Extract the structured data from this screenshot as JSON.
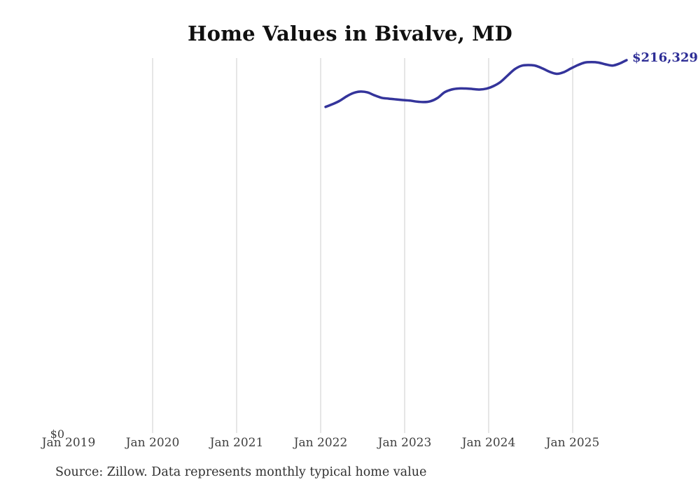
{
  "title": "Home Values in Bivalve, MD",
  "source_note": "Source: Zillow. Data represents monthly typical home value",
  "y_zero_label": "$0",
  "last_value_label": "$216,329",
  "colors": {
    "background": "#ffffff",
    "line": "#34349b",
    "last_value_label": "#2e2e96",
    "grid": "#cccccc",
    "axis_text": "#3f3f3f",
    "title_text": "#101010",
    "source_text": "#303030"
  },
  "chart_data": {
    "type": "line",
    "title": "Home Values in Bivalve, MD",
    "xlabel": "",
    "ylabel": "",
    "legend": "none",
    "grid": "vertical-only",
    "ylim": [
      0,
      216329
    ],
    "y_zero_label": "$0",
    "last_point_label": "$216,329",
    "x_ticks": [
      {
        "label": "Jan 2019",
        "year": 2019,
        "gridline": false
      },
      {
        "label": "Jan 2020",
        "year": 2020,
        "gridline": true
      },
      {
        "label": "Jan 2021",
        "year": 2021,
        "gridline": true
      },
      {
        "label": "Jan 2022",
        "year": 2022,
        "gridline": true
      },
      {
        "label": "Jan 2023",
        "year": 2023,
        "gridline": true
      },
      {
        "label": "Jan 2024",
        "year": 2024,
        "gridline": true
      },
      {
        "label": "Jan 2025",
        "year": 2025,
        "gridline": true
      }
    ],
    "series": [
      {
        "name": "Monthly typical home value",
        "frequency": "monthly",
        "start": "2022-01",
        "end": "2025-08",
        "months": [
          "2022-01",
          "2022-02",
          "2022-03",
          "2022-04",
          "2022-05",
          "2022-06",
          "2022-07",
          "2022-08",
          "2022-09",
          "2022-10",
          "2022-11",
          "2022-12",
          "2023-01",
          "2023-02",
          "2023-03",
          "2023-04",
          "2023-05",
          "2023-06",
          "2023-07",
          "2023-08",
          "2023-09",
          "2023-10",
          "2023-11",
          "2023-12",
          "2024-01",
          "2024-02",
          "2024-03",
          "2024-04",
          "2024-05",
          "2024-06",
          "2024-07",
          "2024-08",
          "2024-09",
          "2024-10",
          "2024-11",
          "2024-12",
          "2025-01",
          "2025-02",
          "2025-03",
          "2025-04",
          "2025-05",
          "2025-06",
          "2025-07",
          "2025-08"
        ],
        "values": [
          189200,
          190800,
          192700,
          195300,
          197300,
          198100,
          197600,
          195900,
          194500,
          194000,
          193600,
          193200,
          192900,
          192300,
          192000,
          192500,
          194400,
          197700,
          199300,
          199900,
          199900,
          199600,
          199300,
          199800,
          201300,
          203700,
          207400,
          211000,
          213100,
          213500,
          213100,
          211500,
          209600,
          208400,
          209300,
          211400,
          213400,
          214900,
          215200,
          214900,
          213900,
          213200,
          214400,
          216329
        ]
      }
    ]
  }
}
